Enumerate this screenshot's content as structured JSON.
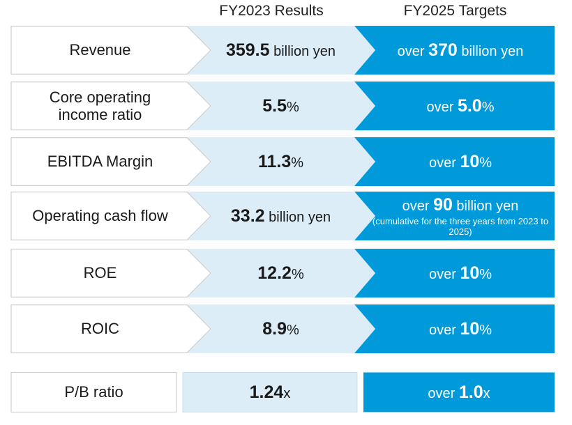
{
  "headers": {
    "results": "FY2023 Results",
    "targets": "FY2025 Targets"
  },
  "colors": {
    "label_bg": "#ffffff",
    "results_bg": "#dcedf8",
    "targets_bg": "#0099d9",
    "outline": "#cfcfcf"
  },
  "rows": [
    {
      "label_lines": [
        "Revenue"
      ],
      "result_value": "359.5",
      "result_unit": " billion yen",
      "target_prefix": "over ",
      "target_value": "370",
      "target_unit": " billion yen",
      "target_note": ""
    },
    {
      "label_lines": [
        "Core operating",
        "income ratio"
      ],
      "result_value": "5.5",
      "result_unit": "%",
      "target_prefix": "over ",
      "target_value": "5.0",
      "target_unit": "%",
      "target_note": ""
    },
    {
      "label_lines": [
        "EBITDA Margin"
      ],
      "result_value": "11.3",
      "result_unit": "%",
      "target_prefix": "over ",
      "target_value": "10",
      "target_unit": "%",
      "target_note": ""
    },
    {
      "label_lines": [
        "Operating cash flow"
      ],
      "result_value": "33.2",
      "result_unit": " billion yen",
      "target_prefix": "over ",
      "target_value": "90",
      "target_unit": " billion yen",
      "target_note": "(cumulative for the three years from 2023 to 2025)"
    },
    {
      "label_lines": [
        "ROE"
      ],
      "result_value": "12.2",
      "result_unit": "%",
      "target_prefix": "over ",
      "target_value": "10",
      "target_unit": "%",
      "target_note": ""
    },
    {
      "label_lines": [
        "ROIC"
      ],
      "result_value": "8.9",
      "result_unit": "%",
      "target_prefix": "over ",
      "target_value": "10",
      "target_unit": "%",
      "target_note": ""
    }
  ],
  "pb_row": {
    "label": "P/B ratio",
    "result_value": "1.24",
    "result_unit": "x",
    "target_prefix": "over ",
    "target_value": "1.0",
    "target_unit": "x"
  }
}
